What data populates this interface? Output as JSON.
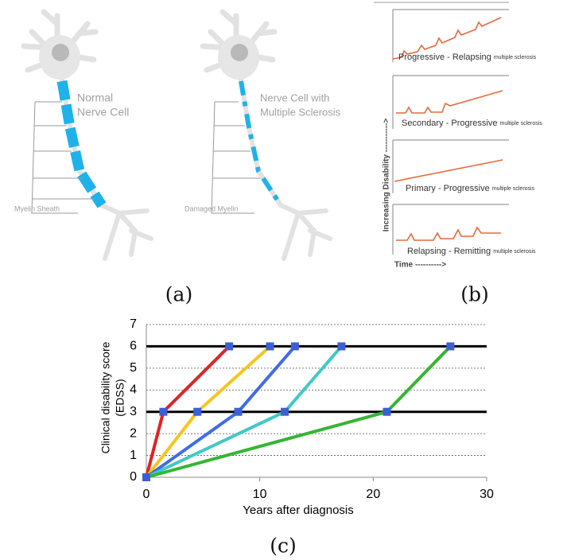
{
  "panel_a": {
    "normal_label": [
      "Normal",
      "Nerve Cell"
    ],
    "ms_label": [
      "Nerve Cell with",
      "Multiple Sclerosis"
    ],
    "sheath_label": "Myelin Sheath",
    "damaged_label": "Damaged Myelin",
    "caption": "(a)"
  },
  "panel_b": {
    "ylabel": "Increasing Disability ----------->",
    "xlabel": "Time ---------->",
    "caption": "(b)",
    "panels": [
      {
        "name": "Progressive - Relapsing",
        "suffix": "multiple sclerosis"
      },
      {
        "name": "Secondary - Progressive",
        "suffix": "multiple sclerosis"
      },
      {
        "name": "Primary - Progressive",
        "suffix": "multiple sclerosis"
      },
      {
        "name": "Relapsing - Remitting",
        "suffix": "multiple sclerosis"
      }
    ]
  },
  "chart_data": {
    "type": "line",
    "caption": "(c)",
    "xlabel": "Years after diagnosis",
    "ylabel": [
      "Clinical disability score",
      "(EDSS)"
    ],
    "xlim": [
      0,
      30
    ],
    "xticks": [
      0,
      10,
      20,
      30
    ],
    "ylim": [
      0,
      7
    ],
    "yticks": [
      0,
      1,
      2,
      3,
      4,
      5,
      6,
      7
    ],
    "grid": true,
    "reference_lines": [
      3,
      6
    ],
    "marker_color": "#3d5fd6",
    "series": [
      {
        "color": "#e32222",
        "x": [
          0,
          1.5,
          7.3
        ],
        "values": [
          0,
          3,
          6
        ]
      },
      {
        "color": "#f6c51b",
        "x": [
          0,
          4.5,
          10.9
        ],
        "values": [
          0,
          3,
          6
        ]
      },
      {
        "color": "#3e6cea",
        "x": [
          0,
          8.1,
          13.1
        ],
        "values": [
          0,
          3,
          6
        ]
      },
      {
        "color": "#3fc9c6",
        "x": [
          0,
          12.2,
          17.2
        ],
        "values": [
          0,
          3,
          6
        ]
      },
      {
        "color": "#35b634",
        "x": [
          0,
          21.2,
          26.8
        ],
        "values": [
          0,
          3,
          6
        ]
      }
    ]
  }
}
